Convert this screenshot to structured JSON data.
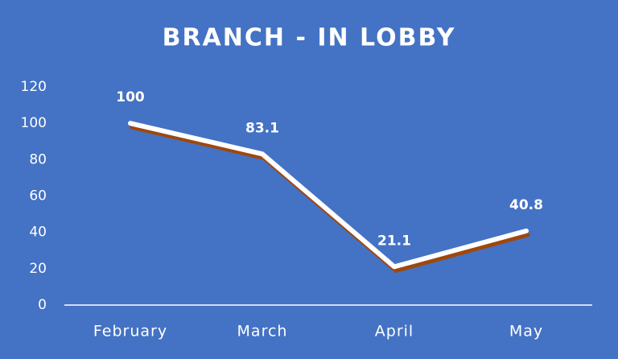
{
  "chart_data": {
    "type": "line",
    "title": "BRANCH - IN LOBBY",
    "categories": [
      "February",
      "March",
      "April",
      "May"
    ],
    "values": [
      100,
      83.1,
      21.1,
      40.8
    ],
    "color": "#ffffff",
    "ylim": [
      0,
      120
    ],
    "yticks": [
      0,
      20,
      40,
      60,
      80,
      100,
      120
    ],
    "grid": false
  }
}
